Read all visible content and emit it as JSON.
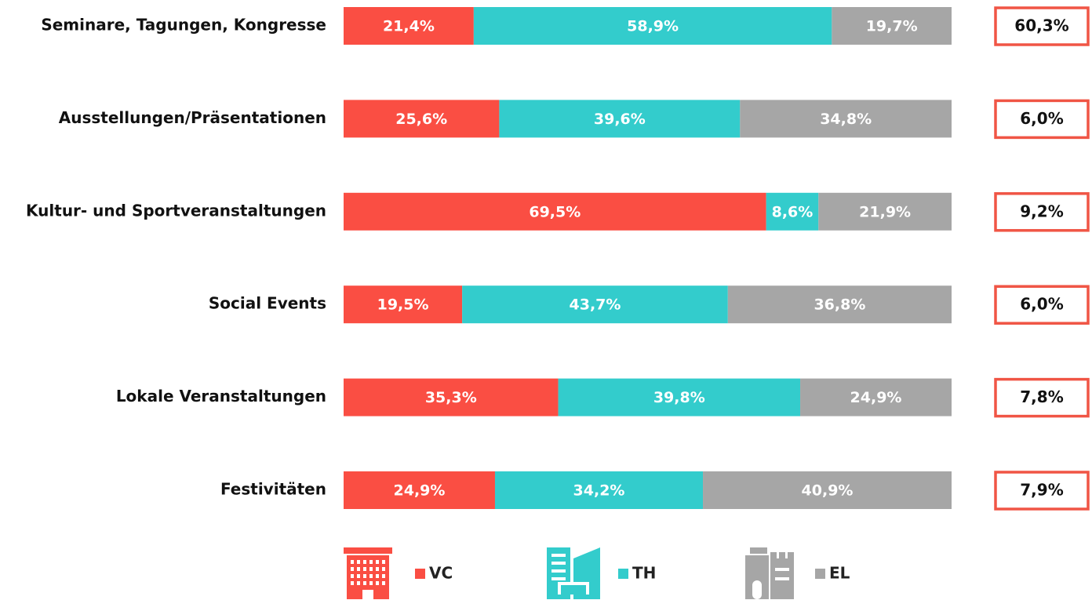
{
  "chart_data": {
    "type": "stacked-bar-horizontal",
    "categories": [
      "Seminare, Tagungen, Kongresse",
      "Ausstellungen/Präsentationen",
      "Kultur- und Sportveranstaltungen",
      "Social Events",
      "Lokale Veranstaltungen",
      "Festivitäten"
    ],
    "series": [
      {
        "name": "VC",
        "color": "#fa4e43",
        "values": [
          21.4,
          25.6,
          69.5,
          19.5,
          35.3,
          24.9
        ],
        "value_labels": [
          "21,4%",
          "25,6%",
          "69,5%",
          "19,5%",
          "35,3%",
          "24,9%"
        ]
      },
      {
        "name": "TH",
        "color": "#33cccc",
        "values": [
          58.9,
          39.6,
          8.6,
          43.7,
          39.8,
          34.2
        ],
        "value_labels": [
          "58,9%",
          "39,6%",
          "8,6%",
          "43,7%",
          "39,8%",
          "34,2%"
        ]
      },
      {
        "name": "EL",
        "color": "#a6a6a6",
        "values": [
          19.7,
          34.8,
          21.9,
          36.8,
          24.9,
          40.9
        ],
        "value_labels": [
          "19,7%",
          "34,8%",
          "21,9%",
          "36,8%",
          "24,9%",
          "40,9%"
        ]
      }
    ],
    "shares": {
      "color": "#f05545",
      "values": [
        60.3,
        6.0,
        9.2,
        6.0,
        7.8,
        7.9
      ],
      "value_labels": [
        "60,3%",
        "6,0%",
        "9,2%",
        "6,0%",
        "7,8%",
        "7,9%"
      ]
    },
    "xlim": [
      0,
      100
    ]
  }
}
